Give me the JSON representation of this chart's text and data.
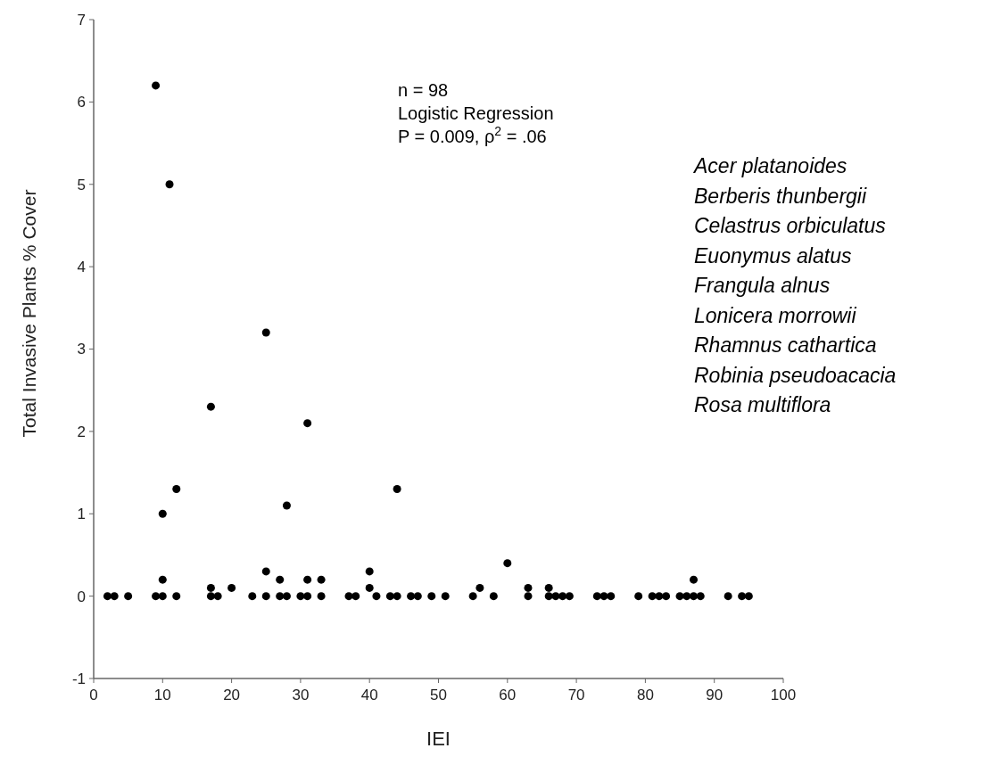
{
  "chart_data": {
    "type": "scatter",
    "xlabel": "IEI",
    "ylabel": "Total Invasive Plants % Cover",
    "xlim": [
      0,
      100
    ],
    "ylim": [
      -1,
      7
    ],
    "xticks": [
      0,
      10,
      20,
      30,
      40,
      50,
      60,
      70,
      80,
      90,
      100
    ],
    "yticks": [
      -1,
      0,
      1,
      2,
      3,
      4,
      5,
      6,
      7
    ],
    "grid": false,
    "marker": "circle",
    "series": [
      {
        "color": "#000000",
        "x": [
          2,
          3,
          5,
          9,
          10,
          12,
          17,
          18,
          23,
          25,
          27,
          28,
          30,
          31,
          33,
          37,
          38,
          41,
          43,
          44,
          46,
          47,
          49,
          51,
          55,
          58,
          63,
          66,
          67,
          68,
          69,
          73,
          74,
          75,
          79,
          81,
          82,
          83,
          85,
          86,
          87,
          88,
          92,
          94,
          95,
          10,
          17,
          20,
          25,
          27,
          31,
          33,
          40,
          40,
          56,
          60,
          63,
          66,
          87,
          9,
          11,
          25,
          17,
          31,
          12,
          44,
          28,
          10
        ],
        "values": [
          0,
          0,
          0,
          0,
          0,
          0,
          0,
          0,
          0,
          0,
          0,
          0,
          0,
          0,
          0,
          0,
          0,
          0,
          0,
          0,
          0,
          0,
          0,
          0,
          0,
          0,
          0,
          0,
          0,
          0,
          0,
          0,
          0,
          0,
          0,
          0,
          0,
          0,
          0,
          0,
          0,
          0,
          0,
          0,
          0,
          0.2,
          0.1,
          0.1,
          0.3,
          0.2,
          0.2,
          0.2,
          0.3,
          0.1,
          0.1,
          0.4,
          0.1,
          0.1,
          0.2,
          6.2,
          5.0,
          3.2,
          2.3,
          2.1,
          1.3,
          1.3,
          1.1,
          1.0
        ]
      }
    ],
    "annotations": [
      "n = 98",
      "Logistic Regression",
      "P  = 0.009, ρ$^{2}$ = .06",
      "Acer platanoides",
      "Berberis thunbergii",
      "Celastrus orbiculatus",
      "Euonymus alatus",
      "Frangula alnus",
      "Lonicera morrowii",
      "Rhamnus cathartica",
      "Robinia pseudoacacia",
      "Rosa multiflora"
    ]
  }
}
